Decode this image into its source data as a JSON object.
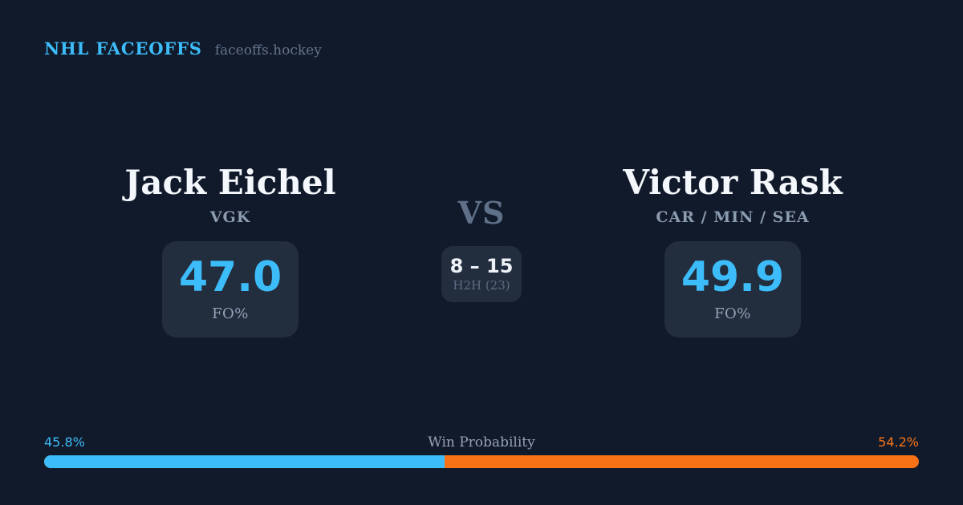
{
  "colors": {
    "background": "#111a2b",
    "card_background": "#222d3e",
    "accent_blue": "#3cbcf8",
    "accent_orange": "#f97316",
    "text_primary": "#f4f7fb",
    "text_muted": "#94a3b8",
    "text_dim": "#5e6c82"
  },
  "header": {
    "brand": "NHL FACEOFFS",
    "domain": "faceoffs.hockey"
  },
  "matchup": {
    "vs_label": "VS",
    "h2h": {
      "score": "8 – 15",
      "label": "H2H (23)"
    },
    "players": [
      {
        "name": "Jack Eichel",
        "team": "VGK",
        "fo_pct": "47.0",
        "stat_label": "FO%"
      },
      {
        "name": "Victor Rask",
        "team": "CAR / MIN / SEA",
        "fo_pct": "49.9",
        "stat_label": "FO%"
      }
    ]
  },
  "win_probability": {
    "title": "Win Probability",
    "left_pct_label": "45.8%",
    "right_pct_label": "54.2%",
    "left_value": 45.8,
    "right_value": 54.2
  }
}
